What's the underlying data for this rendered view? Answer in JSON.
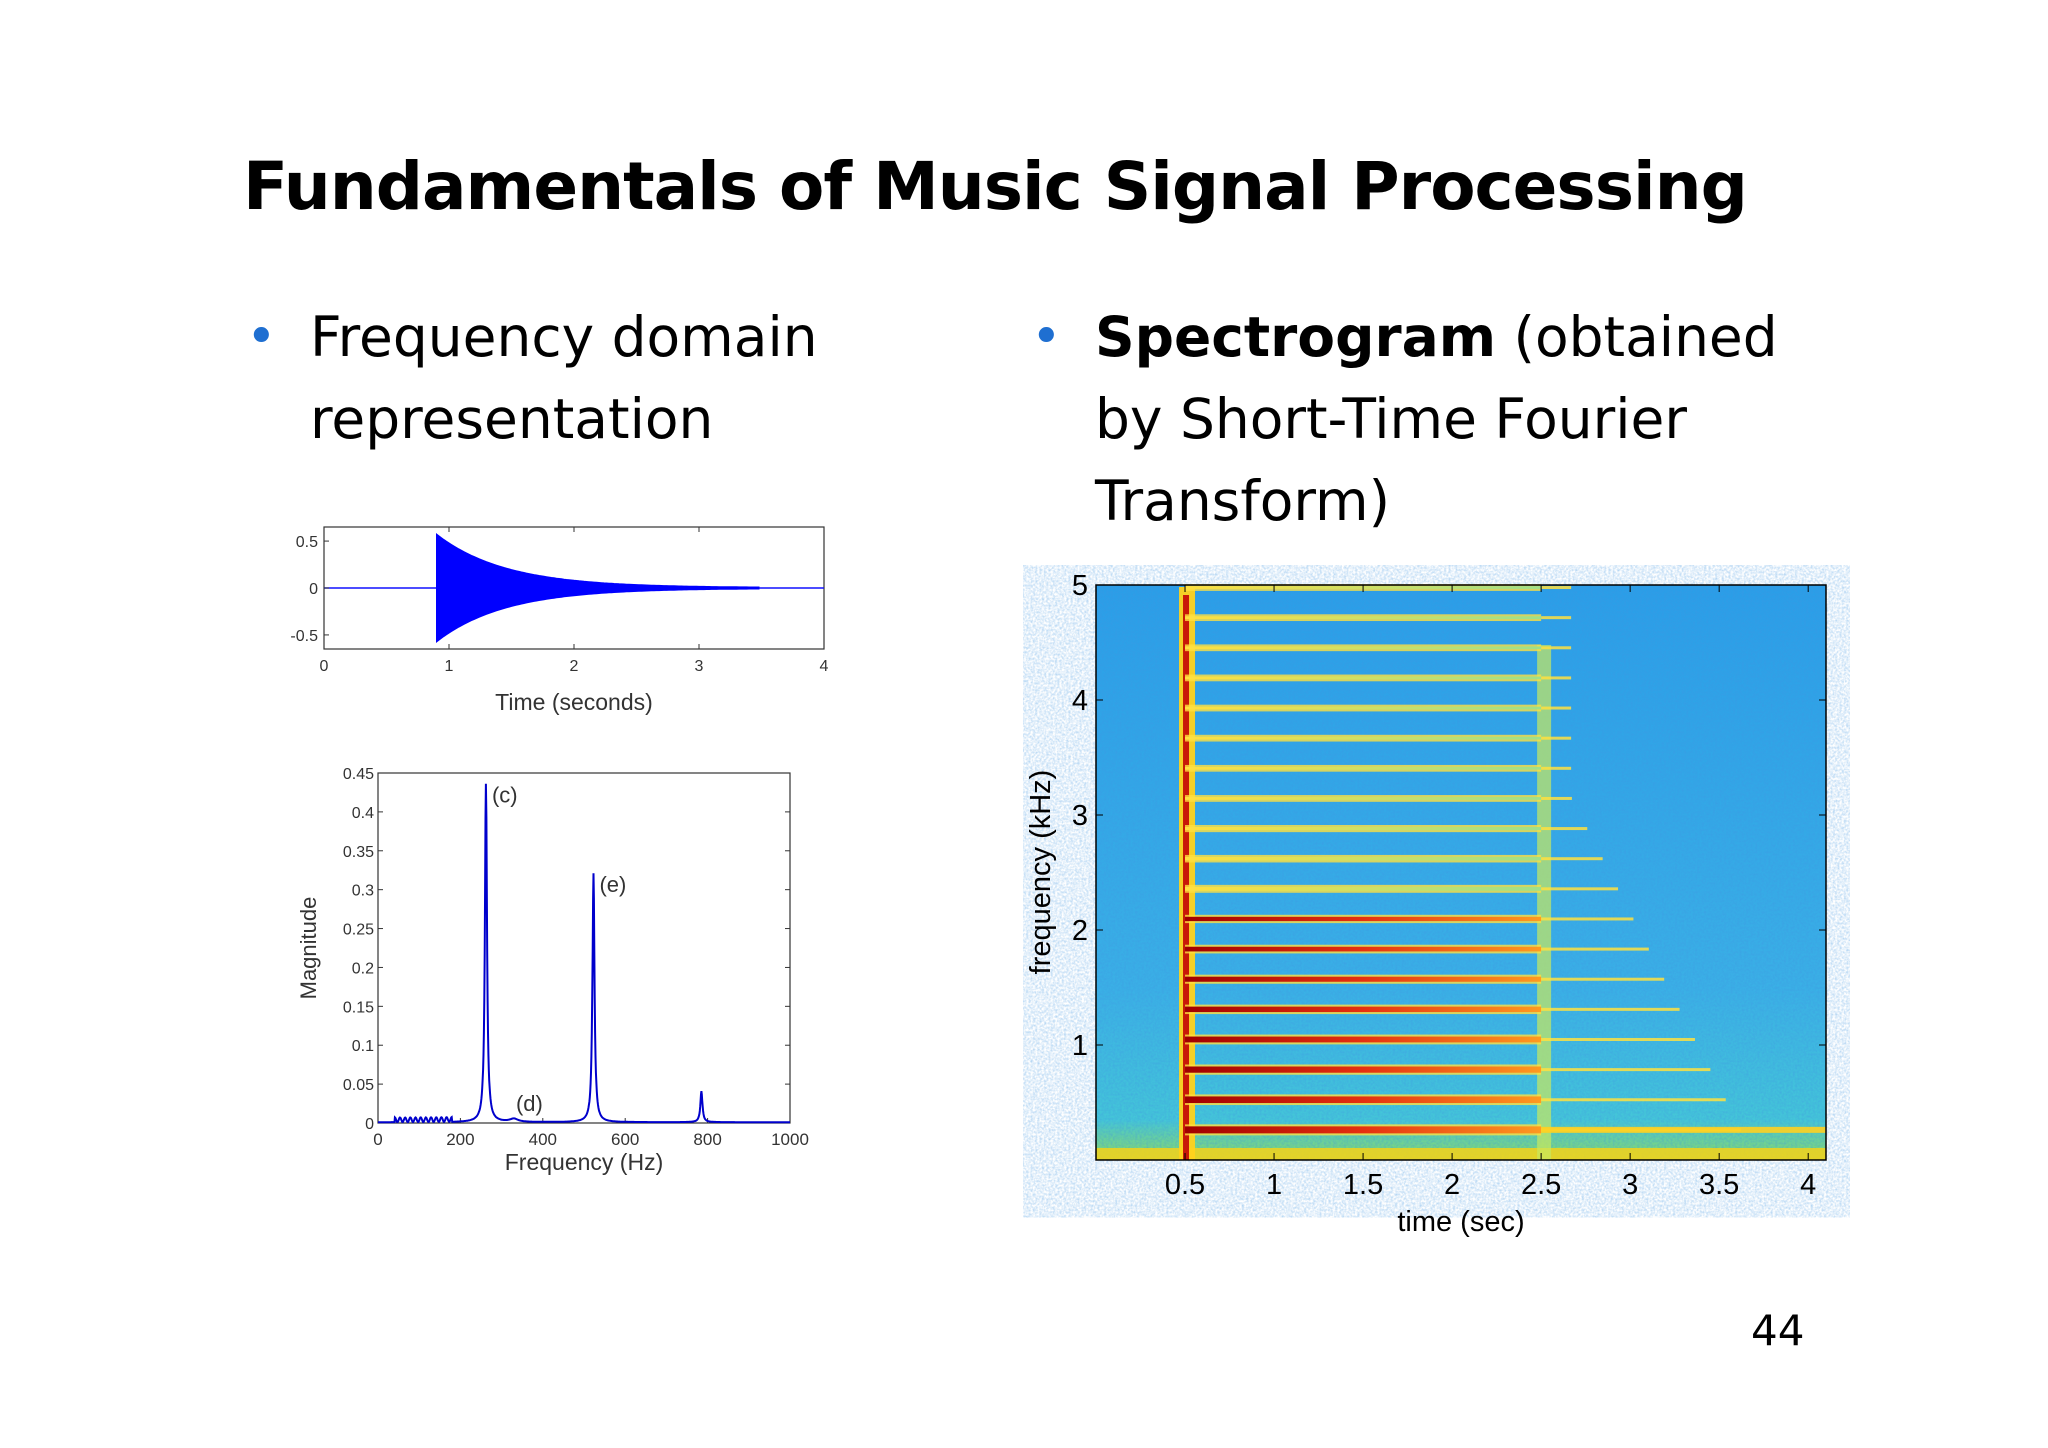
{
  "slide": {
    "title": "Fundamentals of Music Signal Processing",
    "left_bullet": {
      "line1": "Frequency domain",
      "line2": "representation"
    },
    "right_bullet": {
      "bold": "Spectrogram",
      "line1_rest": " (obtained",
      "line2": "by Short-Time Fourier",
      "line3": "Transform)"
    },
    "page_number": "44",
    "bullet_color": "#1f6fd1"
  },
  "chart_data": [
    {
      "type": "line",
      "name": "waveform",
      "xlabel": "Time (seconds)",
      "ylabel": "",
      "xlim": [
        0,
        4
      ],
      "ylim": [
        -0.65,
        0.65
      ],
      "xticks": [
        "0",
        "1",
        "2",
        "3",
        "4"
      ],
      "yticks": [
        "0.5",
        "0",
        "-0.5"
      ],
      "onset": 0.9,
      "peak_amplitude": 0.57,
      "end": 3.5,
      "color": "#0000ff"
    },
    {
      "type": "line",
      "name": "magnitude-spectrum",
      "xlabel": "Frequency (Hz)",
      "ylabel": "Magnitude",
      "xlim": [
        0,
        1000
      ],
      "ylim": [
        0,
        0.45
      ],
      "xticks": [
        "0",
        "200",
        "400",
        "600",
        "800",
        "1000"
      ],
      "yticks": [
        "0",
        "0.05",
        "0.1",
        "0.15",
        "0.2",
        "0.25",
        "0.3",
        "0.35",
        "0.4",
        "0.45"
      ],
      "peaks": [
        {
          "x": 262,
          "y": 0.435,
          "label": "(c)"
        },
        {
          "x": 330,
          "y": 0.004,
          "label": "(d)"
        },
        {
          "x": 523,
          "y": 0.32,
          "label": "(e)"
        },
        {
          "x": 785,
          "y": 0.04,
          "label": ""
        }
      ],
      "color": "#0000cc"
    },
    {
      "type": "heatmap",
      "name": "spectrogram",
      "xlabel": "time (sec)",
      "ylabel": "frequency (kHz)",
      "xlim": [
        0,
        4.1
      ],
      "ylim": [
        0,
        5
      ],
      "xticks": [
        "0.5",
        "1",
        "1.5",
        "2",
        "2.5",
        "3",
        "3.5",
        "4"
      ],
      "yticks": [
        "1",
        "2",
        "3",
        "4",
        "5"
      ],
      "note_start": 0.5,
      "note_end": 2.5,
      "harmonic_spacing_khz": 0.262,
      "colormap": [
        "#00008f",
        "#1ea3e6",
        "#4fd1c8",
        "#ffff40",
        "#ff8000",
        "#c00000",
        "#800000"
      ]
    }
  ]
}
